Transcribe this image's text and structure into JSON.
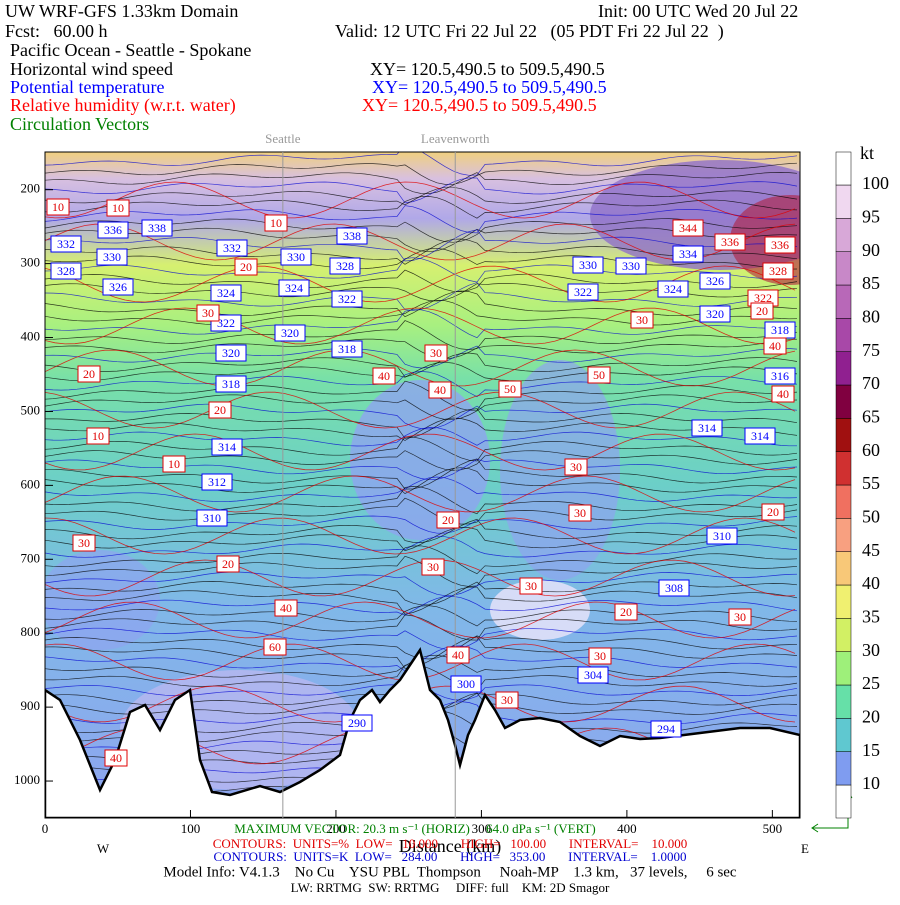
{
  "chart_data": {
    "type": "cross-section",
    "title": "UW WRF-GFS 1.33km Domain",
    "init": "Init: 00 UTC Wed 20 Jul 22",
    "forecast": "Fcst:   60.00 h",
    "valid": "Valid: 12 UTC Fri 22 Jul 22   (05 PDT Fri 22 Jul 22  )",
    "subtitle": "Pacific Ocean - Seattle - Spokane",
    "fields": [
      {
        "name": "Horizontal wind speed",
        "xy": "XY= 120.5,490.5 to 509.5,490.5",
        "color": "#000000"
      },
      {
        "name": "Potential temperature",
        "xy": "XY= 120.5,490.5 to 509.5,490.5",
        "color": "#0000ff"
      },
      {
        "name": "Relative humidity (w.r.t. water)",
        "xy": "XY= 120.5,490.5 to 509.5,490.5",
        "color": "#ff0000"
      },
      {
        "name": "Circulation Vectors",
        "color": "#008000"
      }
    ],
    "locations": [
      {
        "name": "Seattle",
        "x": 163.5
      },
      {
        "name": "Leavenworth",
        "x": 282
      }
    ],
    "x_label": "Distance (km)",
    "x_left_label": "W",
    "x_right_label": "E",
    "xlim": [
      0,
      519
    ],
    "xticks": [
      0,
      100,
      200,
      300,
      400,
      500
    ],
    "ylim": [
      1050,
      149
    ],
    "yticks": [
      200,
      300,
      400,
      500,
      600,
      700,
      800,
      900,
      1000
    ],
    "colorbar": {
      "unit": "kt",
      "levels": [
        10,
        15,
        20,
        25,
        30,
        35,
        40,
        45,
        50,
        55,
        60,
        65,
        70,
        75,
        80,
        85,
        90,
        95,
        100
      ],
      "colors": [
        "#ffffff",
        "#7f9cf0",
        "#5fc8d0",
        "#66e0a8",
        "#9ef07a",
        "#d2f064",
        "#f0f070",
        "#f8c878",
        "#f8a080",
        "#f07060",
        "#d03030",
        "#a01010",
        "#800040",
        "#902090",
        "#a848a8",
        "#b868b8",
        "#c888c8",
        "#d8a8d8",
        "#f0d8f0",
        "#ffffff"
      ]
    },
    "theta_labels": [
      336,
      338,
      332,
      330,
      328,
      326,
      332,
      330,
      328,
      338,
      324,
      324,
      322,
      322,
      320,
      318,
      320,
      318,
      314,
      312,
      310,
      330,
      330,
      334,
      322,
      324,
      326,
      320,
      318,
      316,
      314,
      314,
      310,
      308,
      304,
      300,
      290,
      294,
      344,
      336,
      336,
      328,
      322
    ],
    "rh_labels": [
      10,
      10,
      10,
      20,
      30,
      20,
      10,
      10,
      20,
      40,
      30,
      40,
      50,
      50,
      30,
      30,
      30,
      20,
      20,
      30,
      20,
      30,
      40,
      30,
      20,
      30,
      60,
      40,
      30,
      30,
      40,
      40,
      40,
      20
    ],
    "footer": [
      "MAXIMUM VECTOR: 20.3 m s⁻¹ (HORIZ)     64.0 dPa s⁻¹ (VERT)",
      "CONTOURS:  UNITS=%  LOW=   10.000       HIGH=   100.00       INTERVAL=    10.000",
      "CONTOURS:  UNITS=K  LOW=   284.00       HIGH=   353.00       INTERVAL=    1.0000",
      "Model Info: V4.1.3    No Cu    YSU PBL  Thompson     Noah-MP    1.3 km,   37 levels,     6 sec",
      "LW: RRTMG  SW: RRTMG     DIFF: full    KM: 2D Smagor"
    ]
  }
}
